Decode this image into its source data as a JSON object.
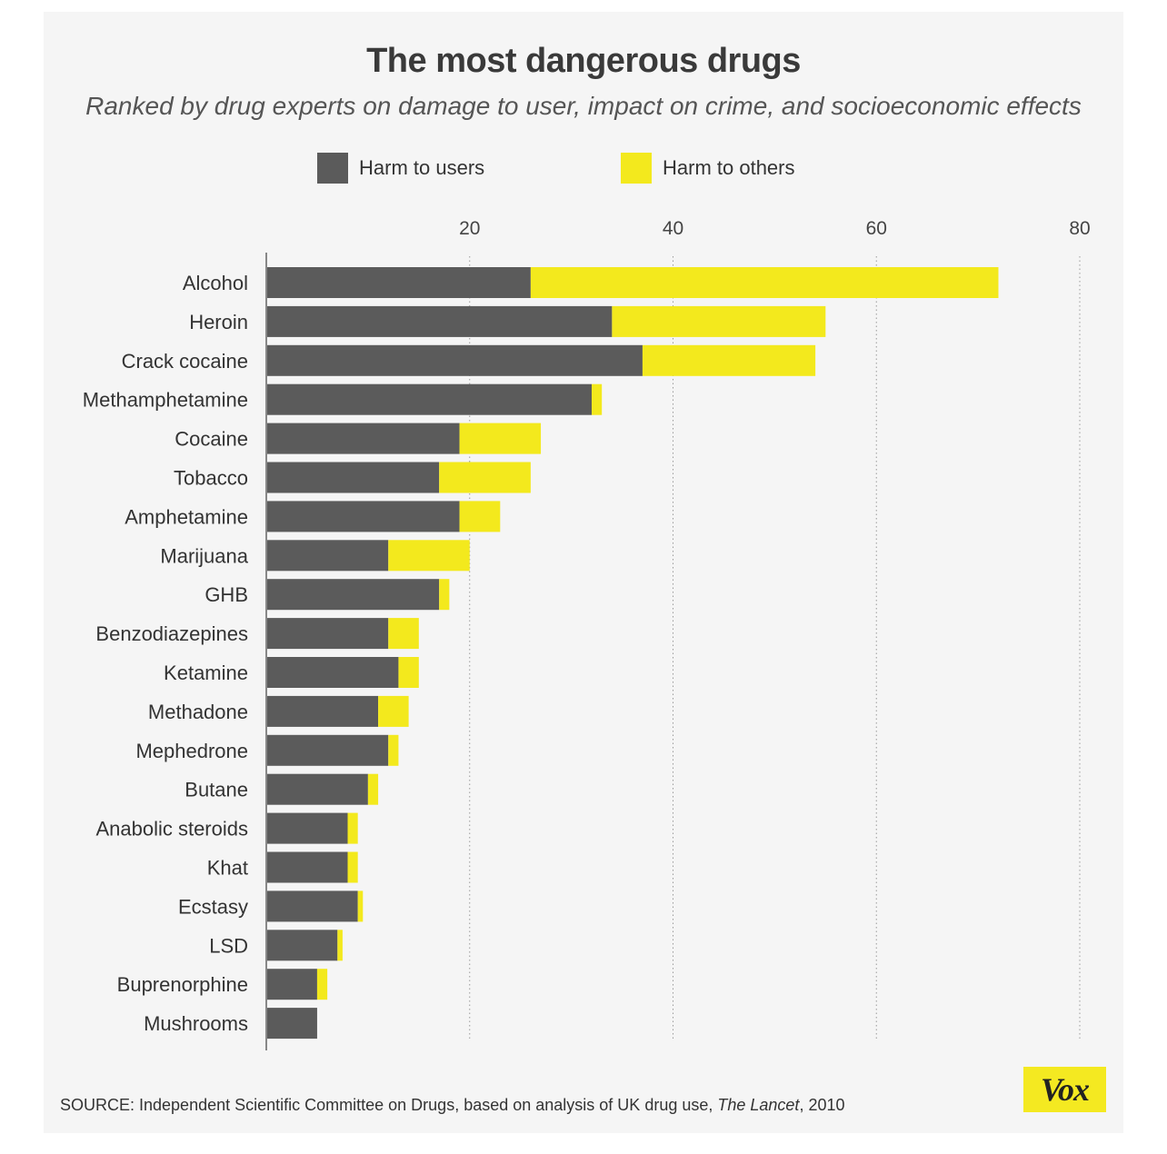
{
  "title": "The most dangerous drugs",
  "subtitle": "Ranked by drug experts on damage to user, impact on crime, and socioeconomic effects",
  "legend": {
    "users_label": "Harm to users",
    "others_label": "Harm to others"
  },
  "colors": {
    "users": "#5b5b5b",
    "others": "#f3e91d",
    "gridline": "#9a9a9a",
    "axis": "#888888"
  },
  "source": {
    "prefix": "SOURCE: Independent Scientific Committee on Drugs, based on analysis of UK drug use, ",
    "italic": "The Lancet",
    "suffix": ", 2010"
  },
  "logo": "Vox",
  "chart_data": {
    "type": "bar",
    "orientation": "horizontal",
    "stacked": true,
    "title": "The most dangerous drugs",
    "subtitle": "Ranked by drug experts on damage to user, impact on crime, and socioeconomic effects",
    "xlim": [
      0,
      80
    ],
    "xticks": [
      20,
      40,
      60,
      80
    ],
    "grid": true,
    "legend_position": "top",
    "categories": [
      "Alcohol",
      "Heroin",
      "Crack cocaine",
      "Methamphetamine",
      "Cocaine",
      "Tobacco",
      "Amphetamine",
      "Marijuana",
      "GHB",
      "Benzodiazepines",
      "Ketamine",
      "Methadone",
      "Mephedrone",
      "Butane",
      "Anabolic steroids",
      "Khat",
      "Ecstasy",
      "LSD",
      "Buprenorphine",
      "Mushrooms"
    ],
    "series": [
      {
        "name": "Harm to users",
        "values": [
          26,
          34,
          37,
          32,
          19,
          17,
          19,
          12,
          17,
          12,
          13,
          11,
          12,
          10,
          8,
          8,
          9,
          7,
          5,
          5
        ]
      },
      {
        "name": "Harm to others",
        "values": [
          46,
          21,
          17,
          1,
          8,
          9,
          4,
          8,
          1,
          3,
          2,
          3,
          1,
          1,
          1,
          1,
          0.5,
          0.5,
          1,
          0
        ]
      }
    ]
  }
}
